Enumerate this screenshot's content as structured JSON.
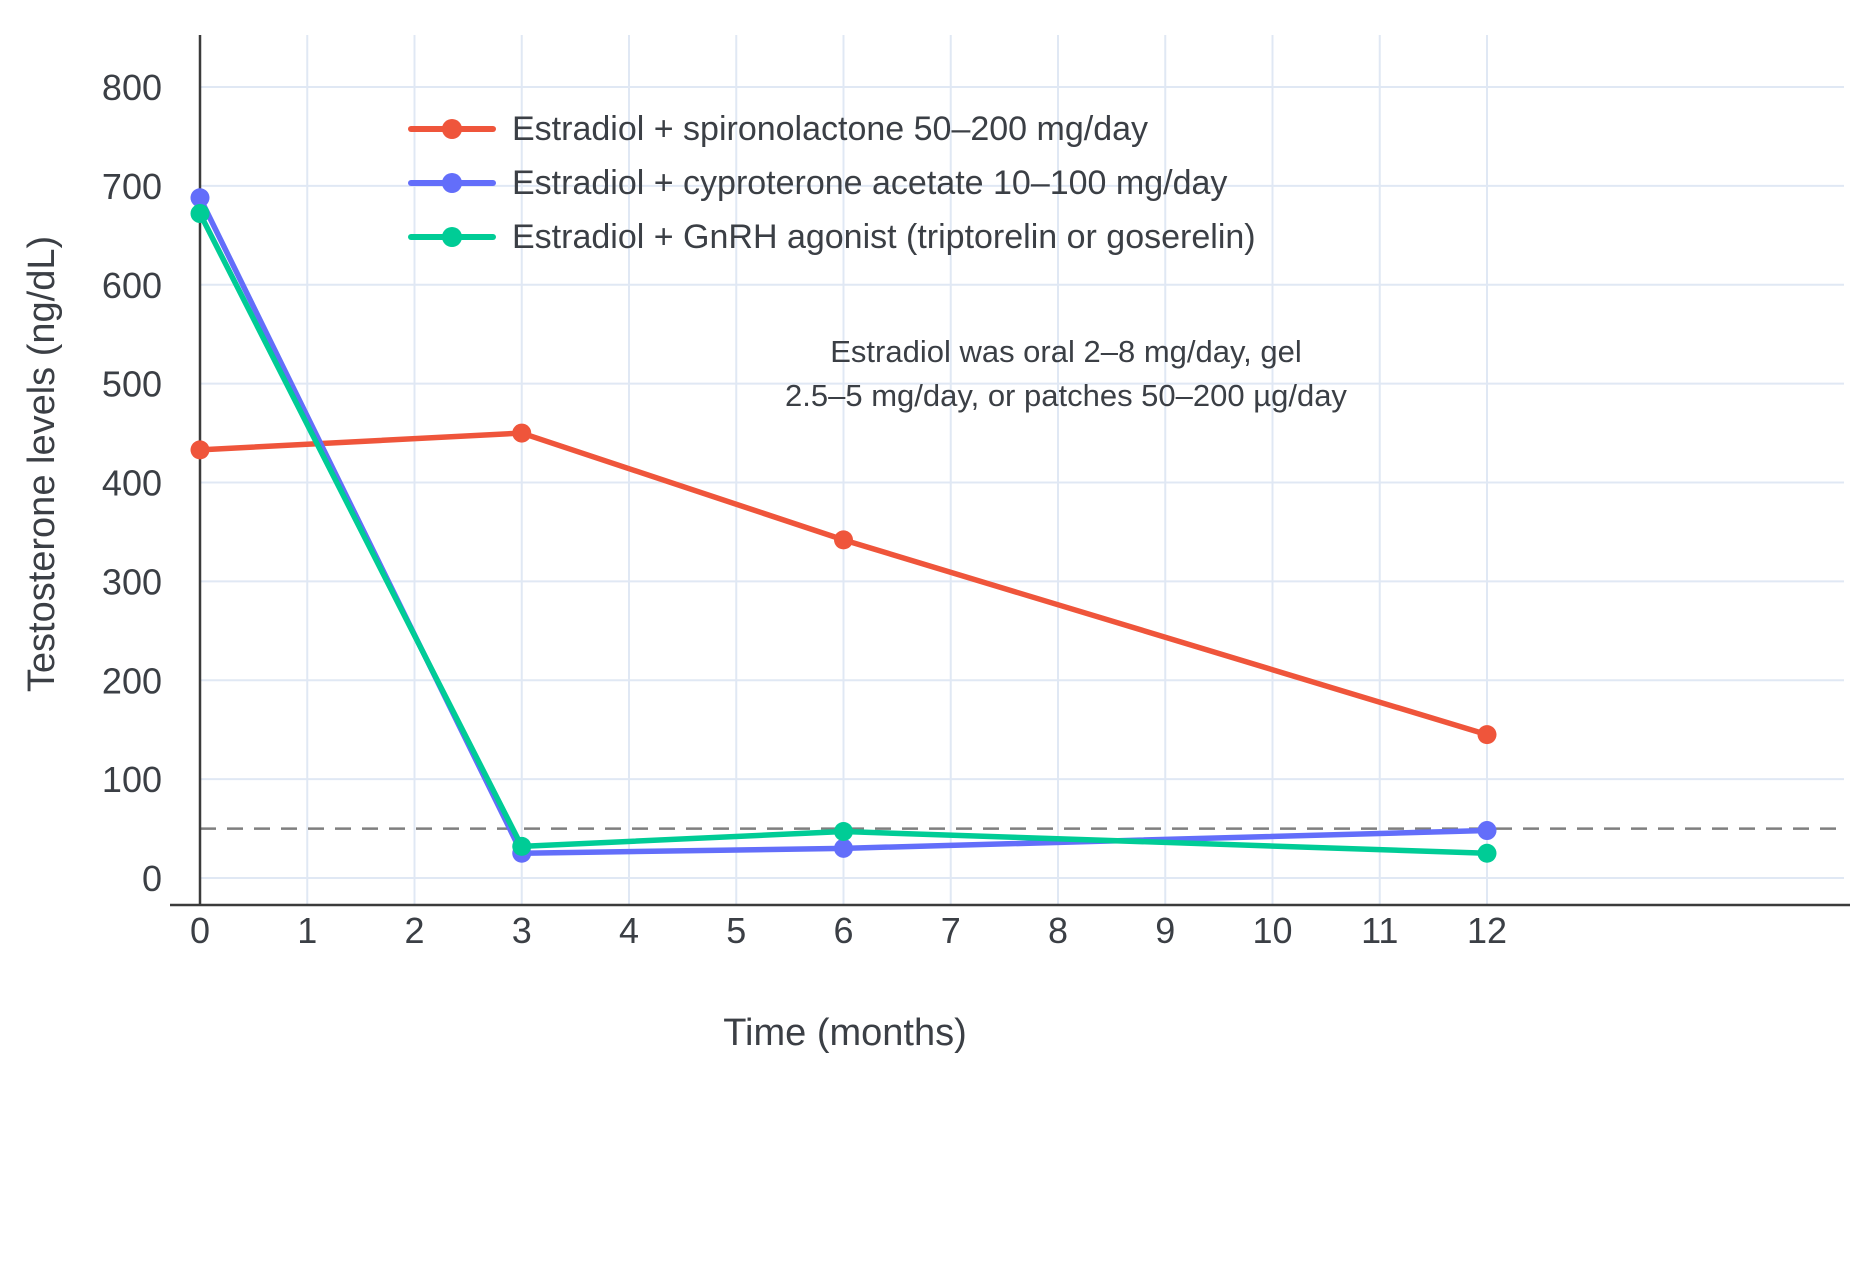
{
  "chart_data": {
    "type": "line",
    "title": "",
    "xlabel": "Time (months)",
    "ylabel": "Testosterone levels (ng/dL)",
    "xlim": [
      0,
      12
    ],
    "ylim": [
      0,
      800
    ],
    "x_ticks": [
      0,
      1,
      2,
      3,
      4,
      5,
      6,
      7,
      8,
      9,
      10,
      11,
      12
    ],
    "y_ticks": [
      0,
      100,
      200,
      300,
      400,
      500,
      600,
      700,
      800
    ],
    "grid": true,
    "legend_position": "top-left-inside",
    "x": [
      0,
      3,
      6,
      12
    ],
    "series": [
      {
        "name": "Estradiol + spironolactone 50–200 mg/day",
        "color": "#EF553B",
        "values": [
          433,
          450,
          342,
          145
        ]
      },
      {
        "name": "Estradiol + cyproterone acetate 10–100 mg/day",
        "color": "#636EFA",
        "values": [
          688,
          25,
          30,
          48
        ]
      },
      {
        "name": "Estradiol + GnRH agonist (triptorelin or goserelin)",
        "color": "#00CC96",
        "values": [
          672,
          32,
          47,
          25
        ]
      }
    ],
    "threshold_line": {
      "y": 50,
      "style": "dashed",
      "color": "#7F7F7F"
    },
    "annotation": {
      "line1": "Estradiol was oral 2–8 mg/day, gel",
      "line2": "2.5–5 mg/day, or patches 50–200 µg/day"
    },
    "colors": {
      "grid": "#E0E8F4",
      "axis": "#3B3B3B",
      "text": "#3B3F45",
      "background": "#FFFFFF"
    }
  }
}
